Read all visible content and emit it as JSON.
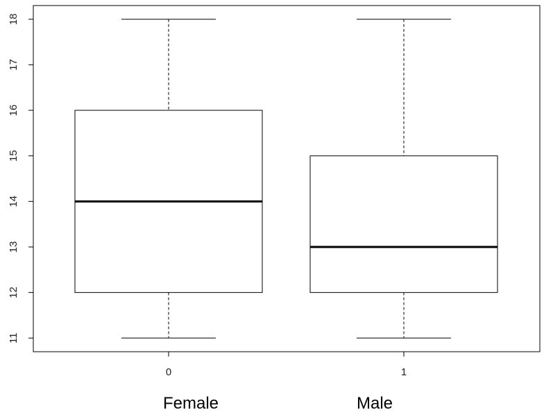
{
  "chart_data": {
    "type": "boxplot",
    "categories": [
      "0",
      "1"
    ],
    "group_labels": [
      "Female",
      "Male"
    ],
    "boxes": [
      {
        "category": "0",
        "min": 11,
        "q1": 12,
        "median": 14,
        "q3": 16,
        "max": 18
      },
      {
        "category": "1",
        "min": 11,
        "q1": 12,
        "median": 13,
        "q3": 15,
        "max": 18
      }
    ],
    "ylim": [
      10.7,
      18.3
    ],
    "yticks": [
      11,
      12,
      13,
      14,
      15,
      16,
      17,
      18
    ],
    "grid": false,
    "title": "",
    "xlabel": "",
    "ylabel": ""
  }
}
